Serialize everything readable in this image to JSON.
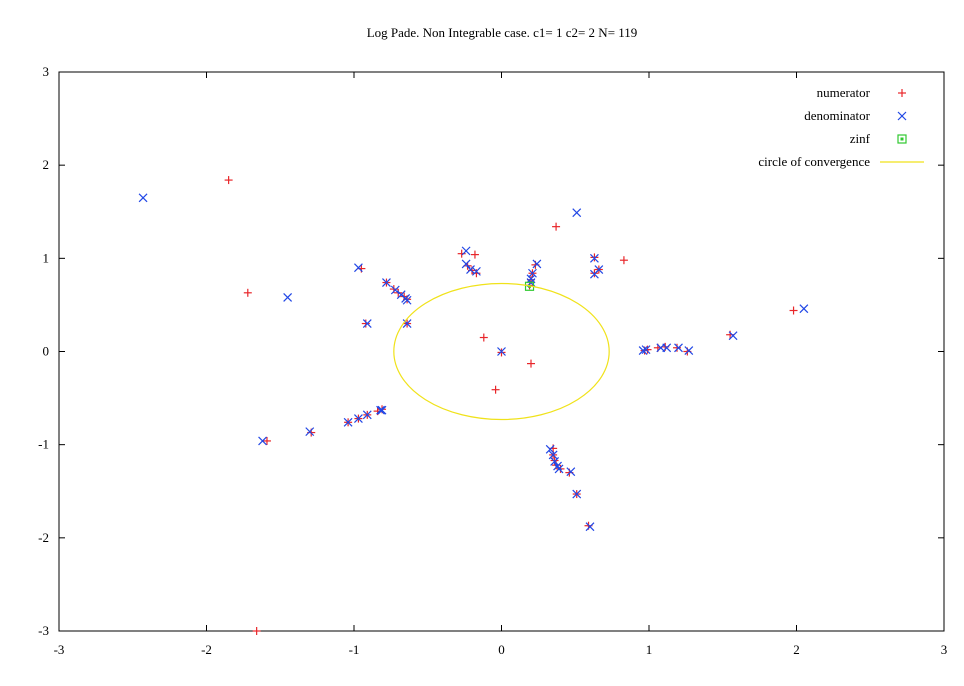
{
  "chart_data": {
    "type": "scatter",
    "title": "Log Pade. Non Integrable case. c1= 1 c2= 2 N= 119",
    "xlabel": "",
    "ylabel": "",
    "xlim": [
      -3,
      3
    ],
    "ylim": [
      -3,
      3
    ],
    "xticks": [
      -3,
      -2,
      -1,
      0,
      1,
      2,
      3
    ],
    "yticks": [
      -3,
      -2,
      -1,
      0,
      1,
      2,
      3
    ],
    "grid": false,
    "legend_position": "top-right",
    "series": [
      {
        "name": "numerator",
        "marker": "plus",
        "color": "#e8262a",
        "points": [
          [
            -1.85,
            1.84
          ],
          [
            -1.72,
            0.63
          ],
          [
            -1.59,
            -0.96
          ],
          [
            -1.29,
            -0.87
          ],
          [
            -1.66,
            -3.0
          ],
          [
            -0.95,
            0.89
          ],
          [
            -0.78,
            0.74
          ],
          [
            -0.73,
            0.67
          ],
          [
            -0.7,
            0.63
          ],
          [
            -0.66,
            0.59
          ],
          [
            -0.64,
            0.56
          ],
          [
            -0.92,
            0.3
          ],
          [
            -0.64,
            0.3
          ],
          [
            -1.04,
            -0.76
          ],
          [
            -0.97,
            -0.72
          ],
          [
            -0.91,
            -0.68
          ],
          [
            -0.84,
            -0.64
          ],
          [
            -0.81,
            -0.62
          ],
          [
            -0.27,
            1.05
          ],
          [
            -0.18,
            1.04
          ],
          [
            -0.23,
            0.92
          ],
          [
            -0.2,
            0.87
          ],
          [
            -0.17,
            0.84
          ],
          [
            -0.12,
            0.15
          ],
          [
            0.0,
            -0.01
          ],
          [
            -0.04,
            -0.41
          ],
          [
            0.2,
            -0.13
          ],
          [
            0.37,
            1.34
          ],
          [
            0.23,
            0.93
          ],
          [
            0.21,
            0.84
          ],
          [
            0.2,
            0.77
          ],
          [
            0.19,
            0.71
          ],
          [
            0.63,
            1.01
          ],
          [
            0.66,
            0.88
          ],
          [
            0.63,
            0.84
          ],
          [
            0.83,
            0.98
          ],
          [
            0.35,
            -1.04
          ],
          [
            0.35,
            -1.11
          ],
          [
            0.36,
            -1.17
          ],
          [
            0.37,
            -1.22
          ],
          [
            0.4,
            -1.26
          ],
          [
            0.46,
            -1.3
          ],
          [
            0.51,
            -1.53
          ],
          [
            0.59,
            -1.87
          ],
          [
            0.97,
            0.01
          ],
          [
            0.99,
            0.02
          ],
          [
            1.06,
            0.04
          ],
          [
            1.11,
            0.05
          ],
          [
            1.19,
            0.04
          ],
          [
            1.26,
            0.0
          ],
          [
            1.55,
            0.18
          ],
          [
            1.98,
            0.44
          ]
        ]
      },
      {
        "name": "denominator",
        "marker": "cross",
        "color": "#2147e6",
        "points": [
          [
            -2.43,
            1.65
          ],
          [
            -1.45,
            0.58
          ],
          [
            -1.62,
            -0.96
          ],
          [
            -1.3,
            -0.86
          ],
          [
            -0.97,
            0.9
          ],
          [
            -0.78,
            0.74
          ],
          [
            -0.72,
            0.66
          ],
          [
            -0.68,
            0.61
          ],
          [
            -0.65,
            0.57
          ],
          [
            -0.64,
            0.55
          ],
          [
            -0.91,
            0.3
          ],
          [
            -0.64,
            0.3
          ],
          [
            -1.04,
            -0.76
          ],
          [
            -0.97,
            -0.72
          ],
          [
            -0.91,
            -0.68
          ],
          [
            -0.82,
            -0.63
          ],
          [
            -0.81,
            -0.63
          ],
          [
            -0.24,
            1.08
          ],
          [
            -0.24,
            0.94
          ],
          [
            -0.21,
            0.88
          ],
          [
            -0.17,
            0.86
          ],
          [
            0.0,
            0.0
          ],
          [
            0.51,
            1.49
          ],
          [
            0.24,
            0.94
          ],
          [
            0.21,
            0.84
          ],
          [
            0.2,
            0.78
          ],
          [
            0.2,
            0.74
          ],
          [
            0.63,
            1.0
          ],
          [
            0.66,
            0.88
          ],
          [
            0.63,
            0.83
          ],
          [
            0.33,
            -1.05
          ],
          [
            0.35,
            -1.11
          ],
          [
            0.36,
            -1.18
          ],
          [
            0.38,
            -1.23
          ],
          [
            0.39,
            -1.26
          ],
          [
            0.47,
            -1.29
          ],
          [
            0.51,
            -1.53
          ],
          [
            0.6,
            -1.88
          ],
          [
            0.96,
            0.01
          ],
          [
            0.98,
            0.02
          ],
          [
            1.08,
            0.04
          ],
          [
            1.12,
            0.04
          ],
          [
            1.2,
            0.04
          ],
          [
            1.27,
            0.01
          ],
          [
            1.57,
            0.17
          ],
          [
            2.05,
            0.46
          ]
        ]
      },
      {
        "name": "zinf",
        "marker": "square",
        "color": "#2fc92f",
        "points": [
          [
            0.19,
            0.7
          ]
        ]
      },
      {
        "name": "circle of convergence",
        "marker": "line",
        "color": "#f0e21a",
        "shape": "circle",
        "center": [
          0.0,
          0.0
        ],
        "radius": 0.73
      }
    ]
  }
}
